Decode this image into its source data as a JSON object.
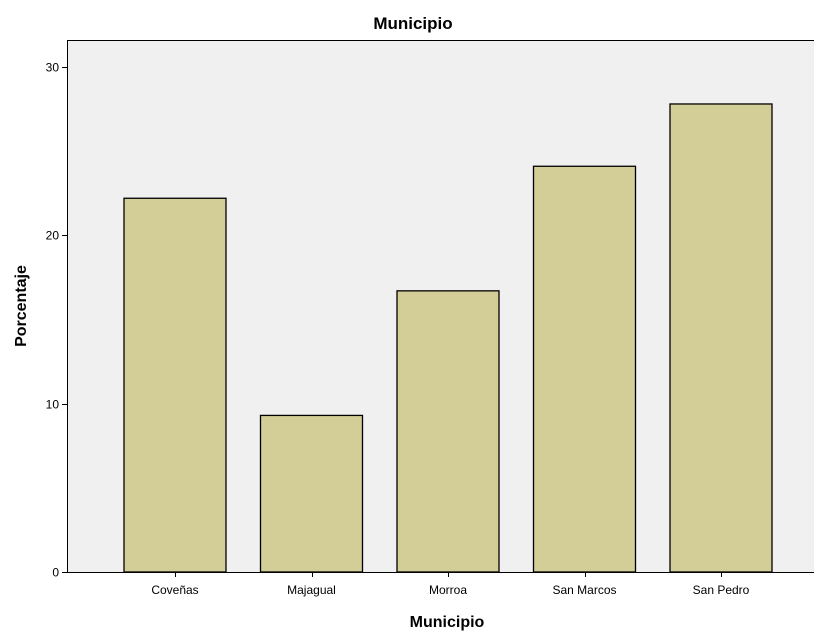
{
  "chart_data": {
    "type": "bar",
    "title": "Municipio",
    "xlabel": "Municipio",
    "ylabel": "Porcentaje",
    "categories": [
      "Coveñas",
      "Majagual",
      "Morroa",
      "San Marcos",
      "San Pedro"
    ],
    "values": [
      22.2,
      9.3,
      16.7,
      24.1,
      27.8
    ],
    "ylim": [
      0,
      31.6
    ],
    "yticks": [
      "0",
      "10",
      "20",
      "30"
    ],
    "grid": false,
    "legend": "none"
  },
  "colors": {
    "plot_background": "#f0f0f0",
    "bar_fill": "#d3ce97",
    "bar_stroke": "#000000"
  }
}
